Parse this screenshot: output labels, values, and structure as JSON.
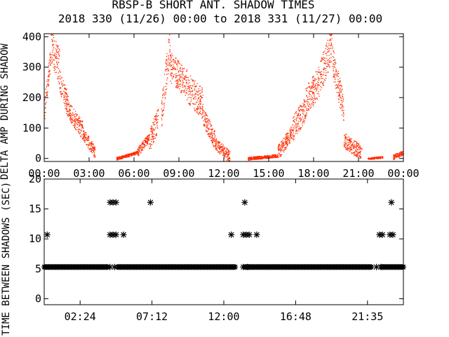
{
  "title": "RBSP-B SHORT ANT. SHADOW TIMES",
  "subtitle": "2018 330 (11/26) 00:00 to 2018 331 (11/27) 00:00",
  "colors": {
    "background": "#ffffff",
    "axes": "#000000",
    "top_points": "#ff2a00",
    "bottom_points": "#000000"
  },
  "chart_data": [
    {
      "type": "scatter",
      "ylabel": "DELTA AMP DURING SHADOW",
      "xlim": [
        0,
        24
      ],
      "ylim": [
        -10,
        410
      ],
      "x_unit": "hours",
      "x_ticks": [
        0,
        3,
        6,
        9,
        12,
        15,
        18,
        21,
        24
      ],
      "x_tick_labels": [
        "00:00",
        "03:00",
        "06:00",
        "09:00",
        "12:00",
        "15:00",
        "18:00",
        "21:00",
        "00:00"
      ],
      "y_ticks": [
        0,
        100,
        200,
        300,
        400
      ],
      "y_tick_labels": [
        "0",
        "100",
        "200",
        "300",
        "400"
      ],
      "point_color": "#ff2a00",
      "segments": [
        {
          "x_start": 0.0,
          "x_end": 0.4,
          "y_start": 160,
          "y_end": 330,
          "spread": 40
        },
        {
          "x_start": 0.4,
          "x_end": 1.0,
          "y_start": 380,
          "y_end": 300,
          "spread": 60
        },
        {
          "x_start": 1.0,
          "x_end": 1.6,
          "y_start": 260,
          "y_end": 170,
          "spread": 40
        },
        {
          "x_start": 1.6,
          "x_end": 2.6,
          "y_start": 160,
          "y_end": 90,
          "spread": 30
        },
        {
          "x_start": 2.6,
          "x_end": 3.4,
          "y_start": 80,
          "y_end": 20,
          "spread": 20
        },
        {
          "x_start": 4.8,
          "x_end": 6.2,
          "y_start": 0,
          "y_end": 20,
          "spread": 5
        },
        {
          "x_start": 6.2,
          "x_end": 7.0,
          "y_start": 20,
          "y_end": 70,
          "spread": 15
        },
        {
          "x_start": 7.0,
          "x_end": 7.6,
          "y_start": 60,
          "y_end": 130,
          "spread": 40
        },
        {
          "x_start": 7.8,
          "x_end": 8.4,
          "y_start": 150,
          "y_end": 380,
          "spread": 60
        },
        {
          "x_start": 8.4,
          "x_end": 9.6,
          "y_start": 300,
          "y_end": 240,
          "spread": 50
        },
        {
          "x_start": 9.6,
          "x_end": 10.6,
          "y_start": 230,
          "y_end": 180,
          "spread": 50
        },
        {
          "x_start": 10.6,
          "x_end": 11.4,
          "y_start": 140,
          "y_end": 60,
          "spread": 30
        },
        {
          "x_start": 11.4,
          "x_end": 12.4,
          "y_start": 50,
          "y_end": 5,
          "spread": 20
        },
        {
          "x_start": 13.6,
          "x_end": 15.6,
          "y_start": 0,
          "y_end": 10,
          "spread": 5
        },
        {
          "x_start": 15.6,
          "x_end": 16.6,
          "y_start": 20,
          "y_end": 90,
          "spread": 25
        },
        {
          "x_start": 16.6,
          "x_end": 17.4,
          "y_start": 100,
          "y_end": 160,
          "spread": 40
        },
        {
          "x_start": 17.4,
          "x_end": 18.4,
          "y_start": 180,
          "y_end": 260,
          "spread": 50
        },
        {
          "x_start": 18.4,
          "x_end": 19.2,
          "y_start": 260,
          "y_end": 380,
          "spread": 60
        },
        {
          "x_start": 19.2,
          "x_end": 20.0,
          "y_start": 330,
          "y_end": 160,
          "spread": 50
        },
        {
          "x_start": 20.0,
          "x_end": 21.2,
          "y_start": 60,
          "y_end": 20,
          "spread": 25
        },
        {
          "x_start": 21.6,
          "x_end": 22.6,
          "y_start": 0,
          "y_end": 5,
          "spread": 3
        },
        {
          "x_start": 23.3,
          "x_end": 24.0,
          "y_start": 5,
          "y_end": 20,
          "spread": 8
        }
      ]
    },
    {
      "type": "scatter",
      "ylabel": "TIME BETWEEN SHADOWS (SEC)",
      "xlim": [
        0,
        24
      ],
      "ylim": [
        -1,
        20
      ],
      "x_unit": "hours",
      "x_ticks": [
        2.4,
        7.2,
        12.0,
        16.8,
        21.6
      ],
      "x_tick_labels": [
        "02:24",
        "07:12",
        "12:00",
        "16:48",
        "21:35"
      ],
      "y_ticks": [
        0,
        5,
        10,
        15,
        20
      ],
      "y_tick_labels": [
        "0",
        "5",
        "10",
        "15",
        "20"
      ],
      "marker": "asterisk",
      "point_color": "#000000",
      "baseline": {
        "y": 5.3,
        "x_ranges": [
          [
            0,
            4.3
          ],
          [
            4.9,
            12.8
          ],
          [
            13.4,
            21.9
          ],
          [
            22.5,
            24.0
          ]
        ]
      },
      "points": [
        {
          "x": 0.2,
          "y": 10.7
        },
        {
          "x": 4.4,
          "y": 16.1
        },
        {
          "x": 4.6,
          "y": 16.1
        },
        {
          "x": 4.8,
          "y": 16.1
        },
        {
          "x": 4.4,
          "y": 10.7
        },
        {
          "x": 4.6,
          "y": 10.7
        },
        {
          "x": 4.8,
          "y": 10.7
        },
        {
          "x": 5.3,
          "y": 10.7
        },
        {
          "x": 4.4,
          "y": 5.3
        },
        {
          "x": 4.7,
          "y": 5.3
        },
        {
          "x": 7.1,
          "y": 16.1
        },
        {
          "x": 12.5,
          "y": 10.7
        },
        {
          "x": 13.4,
          "y": 16.1
        },
        {
          "x": 13.3,
          "y": 10.7
        },
        {
          "x": 13.5,
          "y": 10.7
        },
        {
          "x": 13.7,
          "y": 10.7
        },
        {
          "x": 14.2,
          "y": 10.7
        },
        {
          "x": 13.3,
          "y": 5.3
        },
        {
          "x": 13.6,
          "y": 5.3
        },
        {
          "x": 22.4,
          "y": 10.7
        },
        {
          "x": 22.6,
          "y": 10.7
        },
        {
          "x": 23.1,
          "y": 10.7
        },
        {
          "x": 23.3,
          "y": 10.7
        },
        {
          "x": 23.2,
          "y": 16.1
        },
        {
          "x": 22.2,
          "y": 5.3
        },
        {
          "x": 22.5,
          "y": 5.3
        }
      ]
    }
  ]
}
